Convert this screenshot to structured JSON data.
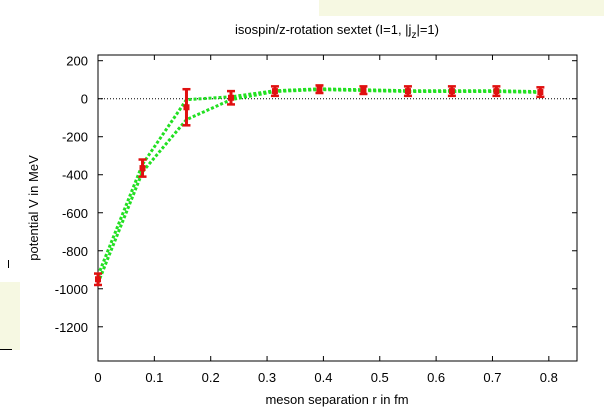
{
  "chart_data": {
    "type": "line",
    "title_main": "isospin/z-rotation sextet (I=1, |j",
    "title_sub": "z",
    "title_end": "|=1)",
    "xlabel": "meson separation r in fm",
    "ylabel": "potential V in MeV",
    "xlim": [
      0,
      0.85
    ],
    "ylim": [
      -1380,
      230
    ],
    "xticks": [
      "0",
      "0.1",
      "0.2",
      "0.3",
      "0.4",
      "0.5",
      "0.6",
      "0.7",
      "0.8"
    ],
    "yticks": [
      "200",
      "0",
      "-200",
      "-400",
      "-600",
      "-800",
      "-1000",
      "-1200"
    ],
    "grid": false,
    "reference_line": 0,
    "line_color": "#22e022",
    "marker_color": "#e01010",
    "series": [
      {
        "x": [
          0.0,
          0.079,
          0.157,
          0.236,
          0.314,
          0.393,
          0.471,
          0.55,
          0.628,
          0.707,
          0.785
        ],
        "y": [
          -950,
          -365,
          -45,
          5,
          40,
          50,
          45,
          40,
          40,
          40,
          35
        ],
        "err": [
          30,
          45,
          95,
          35,
          25,
          20,
          20,
          25,
          25,
          25,
          25
        ],
        "band_low": [
          -930,
          -345,
          -5,
          10,
          42,
          52,
          47,
          42,
          42,
          42,
          37
        ],
        "band_high": [
          -970,
          -385,
          -110,
          -5,
          38,
          48,
          43,
          38,
          38,
          38,
          33
        ]
      }
    ]
  }
}
